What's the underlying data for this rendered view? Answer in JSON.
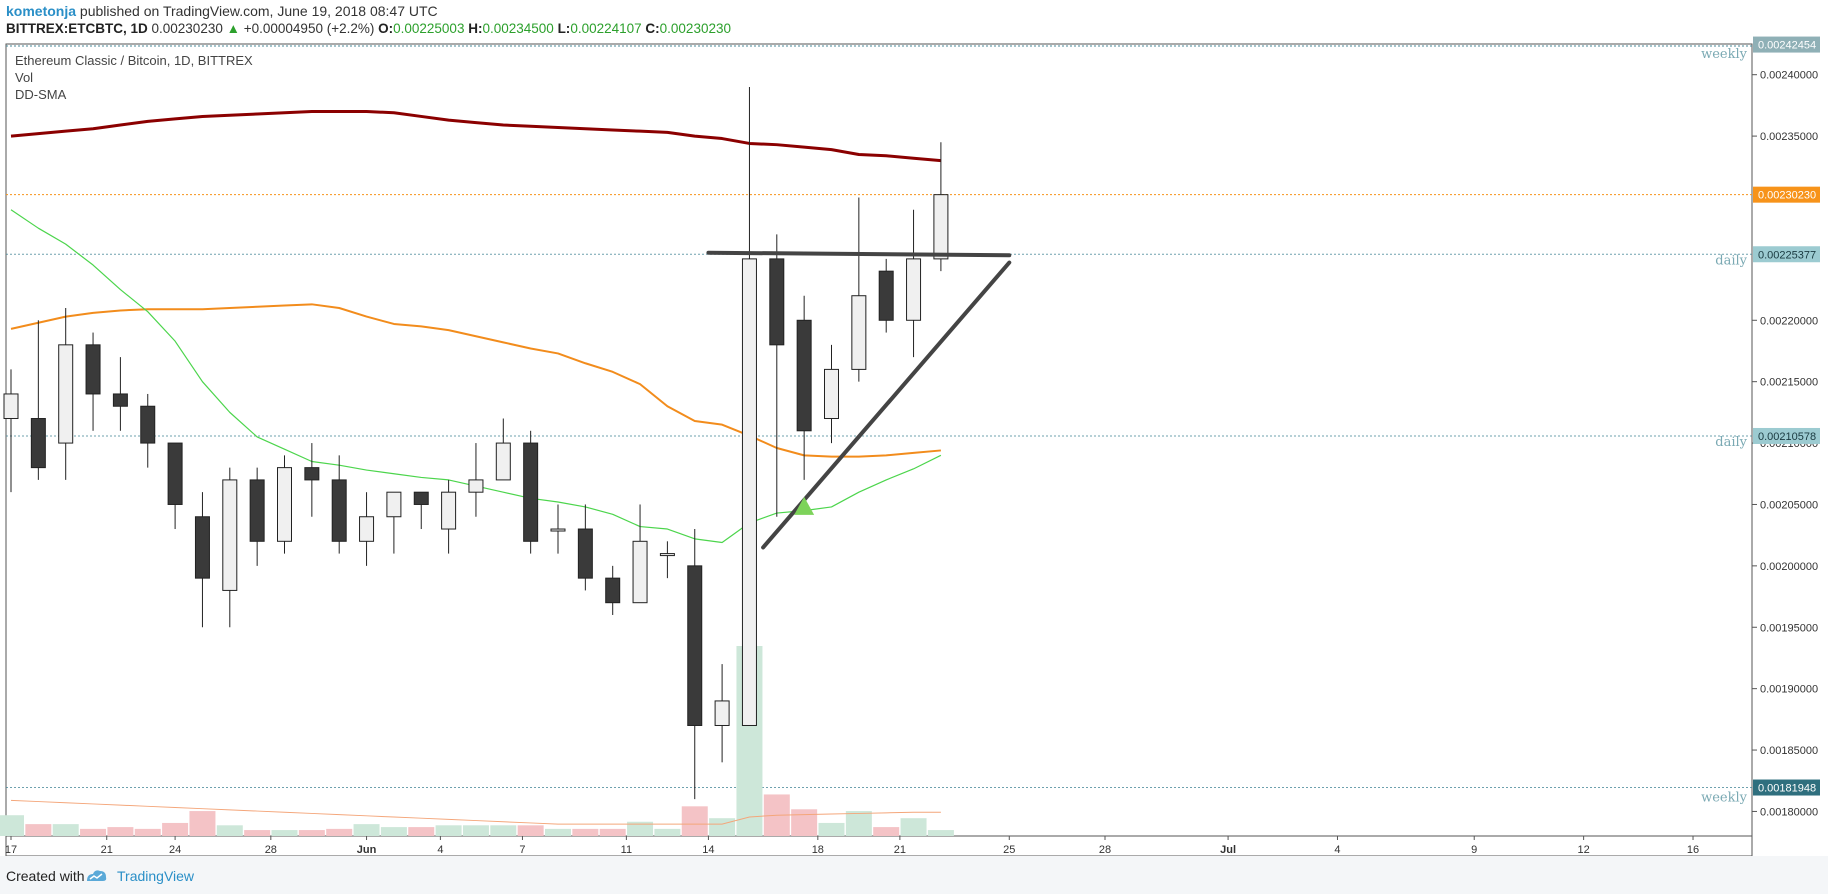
{
  "header": {
    "author": "kometonja",
    "published_text": "published on TradingView.com, June 19, 2018 08:47 UTC",
    "symbol": "BITTREX:ETCBTC, 1D",
    "last": "0.00230230",
    "change_arrow": "▲",
    "change": "+0.00004950 (+2.2%)",
    "o_label": "O:",
    "o_value": "0.00225003",
    "h_label": "H:",
    "h_value": "0.00234500",
    "l_label": "L:",
    "l_value": "0.00224107",
    "c_label": "C:",
    "c_value": "0.00230230"
  },
  "legend": {
    "title": "Ethereum Classic / Bitcoin, 1D, BITTREX",
    "vol": "Vol",
    "sma": "DD-SMA"
  },
  "footer": {
    "created_with": "Created with",
    "brand": "TradingView"
  },
  "colors": {
    "up_fill": "#f0f0f0",
    "down_fill": "#3a3a3a",
    "sma_long": "#8b0000",
    "sma_mid": "#f28c1c",
    "sma_short": "#4cd54c",
    "last_price": "#f7931a",
    "level": "#4a8a9a",
    "vol_up": "#cde7d9",
    "vol_down": "#f4c3c6",
    "vol_sma": "#f4a67a",
    "trendline": "#444444",
    "triangle_marker": "#7dd35a"
  },
  "chart_data": {
    "type": "candlestick",
    "symbol": "ETCBTC",
    "interval": "1D",
    "ylim": [
      0.00178,
      0.002425
    ],
    "x_ticks": [
      "17",
      "21",
      "24",
      "28",
      "Jun",
      "4",
      "7",
      "11",
      "14",
      "18",
      "21",
      "25",
      "28",
      "Jul",
      "4",
      "9",
      "12",
      "16"
    ],
    "x_tick_index": [
      0,
      3.5,
      6,
      9.5,
      13,
      15.7,
      18.7,
      22.5,
      25.5,
      29.5,
      32.5,
      36.5,
      40,
      44.5,
      48.5,
      53.5,
      57.5,
      61.5
    ],
    "y_ticks": [
      "0.00180000",
      "0.00185000",
      "0.00190000",
      "0.00195000",
      "0.00200000",
      "0.00205000",
      "0.00210000",
      "0.00215000",
      "0.00220000",
      "0.00235000",
      "0.00240000"
    ],
    "y_tick_values": [
      0.0018,
      0.00185,
      0.0019,
      0.00195,
      0.002,
      0.00205,
      0.0021,
      0.00215,
      0.0022,
      0.00235,
      0.0024
    ],
    "top_label": "0.00242454",
    "top_label_value": 0.00242454,
    "candles": [
      {
        "o": 0.00212,
        "h": 0.00216,
        "l": 0.00206,
        "c": 0.00214
      },
      {
        "o": 0.00212,
        "h": 0.0022,
        "l": 0.00207,
        "c": 0.00208
      },
      {
        "o": 0.0021,
        "h": 0.00221,
        "l": 0.00207,
        "c": 0.00218
      },
      {
        "o": 0.00218,
        "h": 0.00219,
        "l": 0.00211,
        "c": 0.00214
      },
      {
        "o": 0.00214,
        "h": 0.00217,
        "l": 0.00211,
        "c": 0.00213
      },
      {
        "o": 0.00213,
        "h": 0.00214,
        "l": 0.00208,
        "c": 0.0021
      },
      {
        "o": 0.0021,
        "h": 0.0021,
        "l": 0.00203,
        "c": 0.00205
      },
      {
        "o": 0.00204,
        "h": 0.00206,
        "l": 0.00195,
        "c": 0.00199
      },
      {
        "o": 0.00198,
        "h": 0.00208,
        "l": 0.00195,
        "c": 0.00207
      },
      {
        "o": 0.00207,
        "h": 0.00208,
        "l": 0.002,
        "c": 0.00202
      },
      {
        "o": 0.00202,
        "h": 0.00209,
        "l": 0.00201,
        "c": 0.00208
      },
      {
        "o": 0.00208,
        "h": 0.0021,
        "l": 0.00204,
        "c": 0.00207
      },
      {
        "o": 0.00207,
        "h": 0.00209,
        "l": 0.00201,
        "c": 0.00202
      },
      {
        "o": 0.00202,
        "h": 0.00206,
        "l": 0.002,
        "c": 0.00204
      },
      {
        "o": 0.00204,
        "h": 0.00206,
        "l": 0.00201,
        "c": 0.00206
      },
      {
        "o": 0.00206,
        "h": 0.00206,
        "l": 0.00203,
        "c": 0.00205
      },
      {
        "o": 0.00203,
        "h": 0.00207,
        "l": 0.00201,
        "c": 0.00206
      },
      {
        "o": 0.00206,
        "h": 0.0021,
        "l": 0.00204,
        "c": 0.00207
      },
      {
        "o": 0.00207,
        "h": 0.00212,
        "l": 0.00207,
        "c": 0.0021
      },
      {
        "o": 0.0021,
        "h": 0.00211,
        "l": 0.00201,
        "c": 0.00202
      },
      {
        "o": 0.00203,
        "h": 0.00205,
        "l": 0.00201,
        "c": 0.00203
      },
      {
        "o": 0.00203,
        "h": 0.00205,
        "l": 0.00198,
        "c": 0.00199
      },
      {
        "o": 0.00199,
        "h": 0.002,
        "l": 0.00196,
        "c": 0.00197
      },
      {
        "o": 0.00197,
        "h": 0.00205,
        "l": 0.00197,
        "c": 0.00202
      },
      {
        "o": 0.00201,
        "h": 0.00202,
        "l": 0.00199,
        "c": 0.00201
      },
      {
        "o": 0.002,
        "h": 0.00203,
        "l": 0.00181,
        "c": 0.00187
      },
      {
        "o": 0.00187,
        "h": 0.00192,
        "l": 0.00184,
        "c": 0.00189
      },
      {
        "o": 0.00187,
        "h": 0.00239,
        "l": 0.00187,
        "c": 0.00225
      },
      {
        "o": 0.00225,
        "h": 0.00227,
        "l": 0.00204,
        "c": 0.00218
      },
      {
        "o": 0.0022,
        "h": 0.00222,
        "l": 0.00207,
        "c": 0.00211
      },
      {
        "o": 0.00212,
        "h": 0.00218,
        "l": 0.0021,
        "c": 0.00216
      },
      {
        "o": 0.00216,
        "h": 0.0023,
        "l": 0.00215,
        "c": 0.00222
      },
      {
        "o": 0.00224,
        "h": 0.00225,
        "l": 0.00219,
        "c": 0.0022
      },
      {
        "o": 0.0022,
        "h": 0.00229,
        "l": 0.00217,
        "c": 0.00225
      },
      {
        "o": 0.00225,
        "h": 0.002345,
        "l": 0.00224,
        "c": 0.0023023
      }
    ],
    "volume": [
      0.35,
      0.2,
      0.2,
      0.12,
      0.15,
      0.12,
      0.22,
      0.42,
      0.18,
      0.1,
      0.1,
      0.1,
      0.12,
      0.2,
      0.15,
      0.15,
      0.18,
      0.18,
      0.18,
      0.18,
      0.12,
      0.12,
      0.12,
      0.24,
      0.12,
      0.5,
      0.3,
      3.2,
      0.7,
      0.45,
      0.22,
      0.42,
      0.15,
      0.3,
      0.1
    ],
    "volume_sma": [
      0.6,
      0.58,
      0.56,
      0.54,
      0.52,
      0.5,
      0.48,
      0.46,
      0.44,
      0.42,
      0.4,
      0.38,
      0.36,
      0.34,
      0.32,
      0.3,
      0.28,
      0.26,
      0.24,
      0.22,
      0.2,
      0.2,
      0.2,
      0.2,
      0.2,
      0.2,
      0.2,
      0.32,
      0.35,
      0.36,
      0.37,
      0.38,
      0.39,
      0.4,
      0.4
    ],
    "sma_long": [
      0.00235,
      0.002352,
      0.002354,
      0.002356,
      0.002359,
      0.002362,
      0.002364,
      0.002366,
      0.002367,
      0.002368,
      0.002369,
      0.00237,
      0.00237,
      0.00237,
      0.002369,
      0.002366,
      0.002363,
      0.002361,
      0.002359,
      0.002358,
      0.002357,
      0.002356,
      0.002355,
      0.002354,
      0.002353,
      0.00235,
      0.002348,
      0.002344,
      0.002343,
      0.002341,
      0.002339,
      0.002335,
      0.002334,
      0.002332,
      0.00233
    ],
    "sma_mid": [
      0.002193,
      0.002198,
      0.002203,
      0.002206,
      0.002208,
      0.002209,
      0.002209,
      0.002209,
      0.00221,
      0.002211,
      0.002212,
      0.002213,
      0.00221,
      0.002203,
      0.002197,
      0.002195,
      0.002192,
      0.002187,
      0.002182,
      0.002177,
      0.002173,
      0.002165,
      0.002158,
      0.002148,
      0.00213,
      0.002118,
      0.002115,
      0.002106,
      0.002096,
      0.00209,
      0.002089,
      0.002089,
      0.00209,
      0.002092,
      0.002094
    ],
    "sma_short": [
      0.00229,
      0.002275,
      0.002262,
      0.002245,
      0.002225,
      0.002207,
      0.002183,
      0.00215,
      0.002125,
      0.002105,
      0.002095,
      0.002085,
      0.002082,
      0.002078,
      0.002075,
      0.002072,
      0.00207,
      0.002065,
      0.00206,
      0.002055,
      0.002052,
      0.002048,
      0.002042,
      0.002032,
      0.00203,
      0.002022,
      0.002019,
      0.002035,
      0.002043,
      0.002045,
      0.002048,
      0.00206,
      0.00207,
      0.002079,
      0.00209
    ],
    "levels": [
      {
        "price": 0.00225377,
        "label": "0.00225377",
        "tag": "daily"
      },
      {
        "price": 0.00210578,
        "label": "0.00210578",
        "tag": "daily"
      },
      {
        "price": 0.00181948,
        "label": "0.00181948",
        "tag": "weekly"
      }
    ],
    "top_tag": "weekly",
    "last_price": {
      "price": 0.0023023,
      "label": "0.00230230"
    },
    "trendlines": [
      {
        "from": {
          "i": 25.5,
          "p": 0.002255
        },
        "to": {
          "i": 36.5,
          "p": 0.002253
        }
      },
      {
        "from": {
          "i": 27.5,
          "p": 0.002015
        },
        "to": {
          "i": 36.5,
          "p": 0.002247
        }
      }
    ],
    "marker": {
      "i": 29.0,
      "p": 0.002048,
      "shape": "triangle-up"
    }
  }
}
